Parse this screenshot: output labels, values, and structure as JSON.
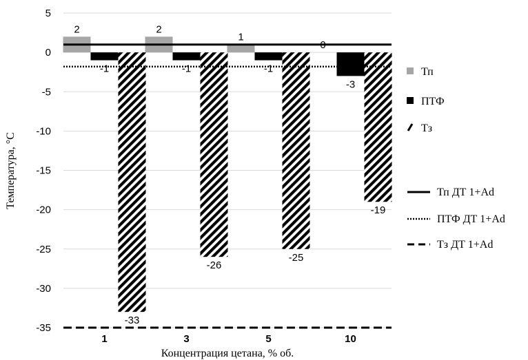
{
  "chart_data": {
    "type": "bar",
    "categories": [
      "1",
      "3",
      "5",
      "10"
    ],
    "xlabel": "Концентрация цетана, % об.",
    "ylabel": "Температура, °С",
    "ylim": [
      -35,
      5
    ],
    "yticks": [
      5,
      0,
      -5,
      -10,
      -15,
      -20,
      -25,
      -30,
      -35
    ],
    "grid": true,
    "legend_position": "right",
    "series": [
      {
        "name": "Тп",
        "values": [
          2,
          2,
          1,
          0
        ],
        "labels": [
          "2",
          "2",
          "1",
          "0"
        ],
        "color": "#a6a6a6",
        "pattern": "solid"
      },
      {
        "name": "ПТФ",
        "values": [
          -1,
          -1,
          -1,
          -3
        ],
        "labels": [
          "-1",
          "-1",
          "-1",
          "-3"
        ],
        "color": "#000000",
        "pattern": "solid"
      },
      {
        "name": "Тз",
        "values": [
          -33,
          -26,
          -25,
          -19
        ],
        "labels": [
          "-33",
          "-26",
          "-25",
          "-19"
        ],
        "color": "#000000",
        "pattern": "diagonal-hatch"
      }
    ],
    "reference_lines": [
      {
        "name": "Тп ДТ 1+Ad",
        "value": 1,
        "style": "solid"
      },
      {
        "name": "ПТФ ДТ 1+Ad",
        "value": -1.8,
        "style": "dotted"
      },
      {
        "name": "Тз ДТ 1+Ad",
        "value": -35,
        "style": "dashed"
      }
    ]
  }
}
